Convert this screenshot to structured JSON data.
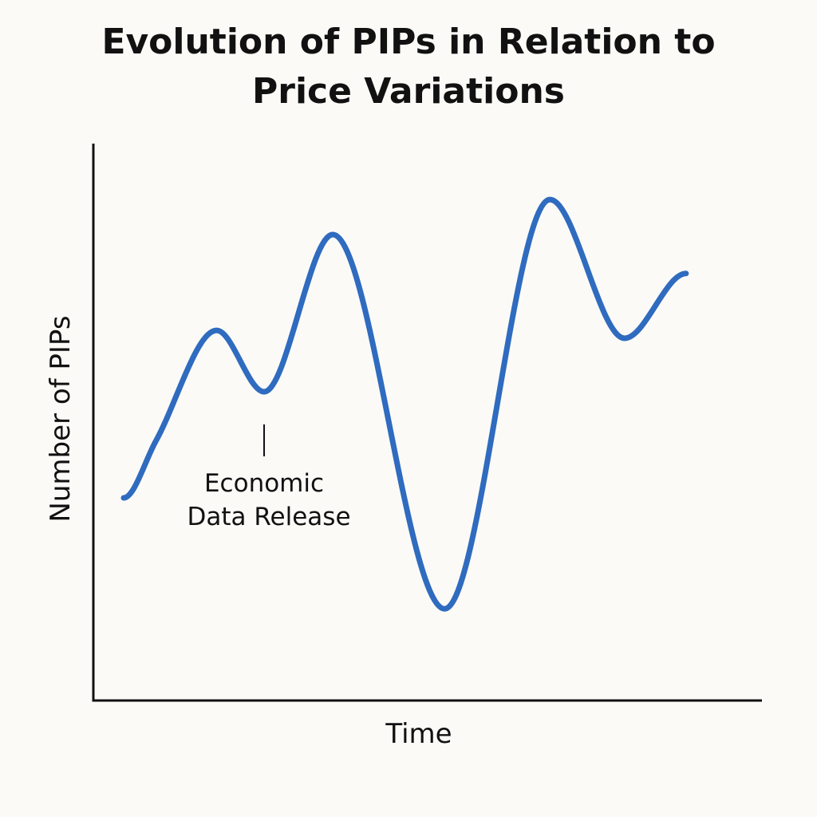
{
  "chart_data": {
    "type": "line",
    "title_lines": [
      "Evolution of PIPs in Relation to",
      "Price Variations"
    ],
    "xlabel": "Time",
    "ylabel": "Number of PIPs",
    "xlim": [
      0,
      100
    ],
    "ylim": [
      0,
      100
    ],
    "grid": false,
    "legend": "none",
    "ticks_shown": false,
    "series": [
      {
        "color": "#2f6bbf",
        "x": [
          0,
          5.3,
          15.3,
          23.1,
          34.4,
          52.8,
          70.1,
          82.4,
          92.5
        ],
        "y": [
          31.8,
          43.5,
          66.2,
          53.6,
          85.9,
          9.0,
          93.1,
          64.6,
          77.9
        ]
      }
    ],
    "annotations": [
      {
        "x": 23.1,
        "lines": [
          "Economic",
          "Data Release"
        ]
      }
    ]
  }
}
